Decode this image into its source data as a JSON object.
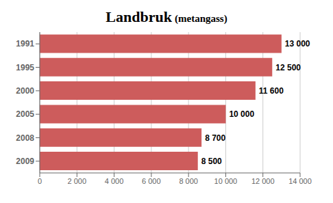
{
  "chart_data": {
    "type": "bar",
    "orientation": "horizontal",
    "title": "Landbruk",
    "subtitle": "(metangass)",
    "categories": [
      "1991",
      "1995",
      "2000",
      "2005",
      "2008",
      "2009"
    ],
    "values": [
      13000,
      12500,
      11600,
      10000,
      8700,
      8500
    ],
    "value_labels": [
      "13 000",
      "12 500",
      "11 600",
      "10 000",
      "8 700",
      "8 500"
    ],
    "data_labels": true,
    "color": "#CD5C5C",
    "xlim": [
      0,
      14000
    ],
    "xticks": [
      0,
      {
        "value": 2000,
        "label": "2 000"
      },
      {
        "value": 4000,
        "label": "4 000"
      },
      {
        "value": 6000,
        "label": "6 000"
      },
      {
        "value": 8000,
        "label": "8 000"
      },
      {
        "value": 10000,
        "label": "10 000"
      },
      {
        "value": 12000,
        "label": "12 000"
      },
      {
        "value": 14000,
        "label": "14 000"
      }
    ],
    "grid": true
  }
}
